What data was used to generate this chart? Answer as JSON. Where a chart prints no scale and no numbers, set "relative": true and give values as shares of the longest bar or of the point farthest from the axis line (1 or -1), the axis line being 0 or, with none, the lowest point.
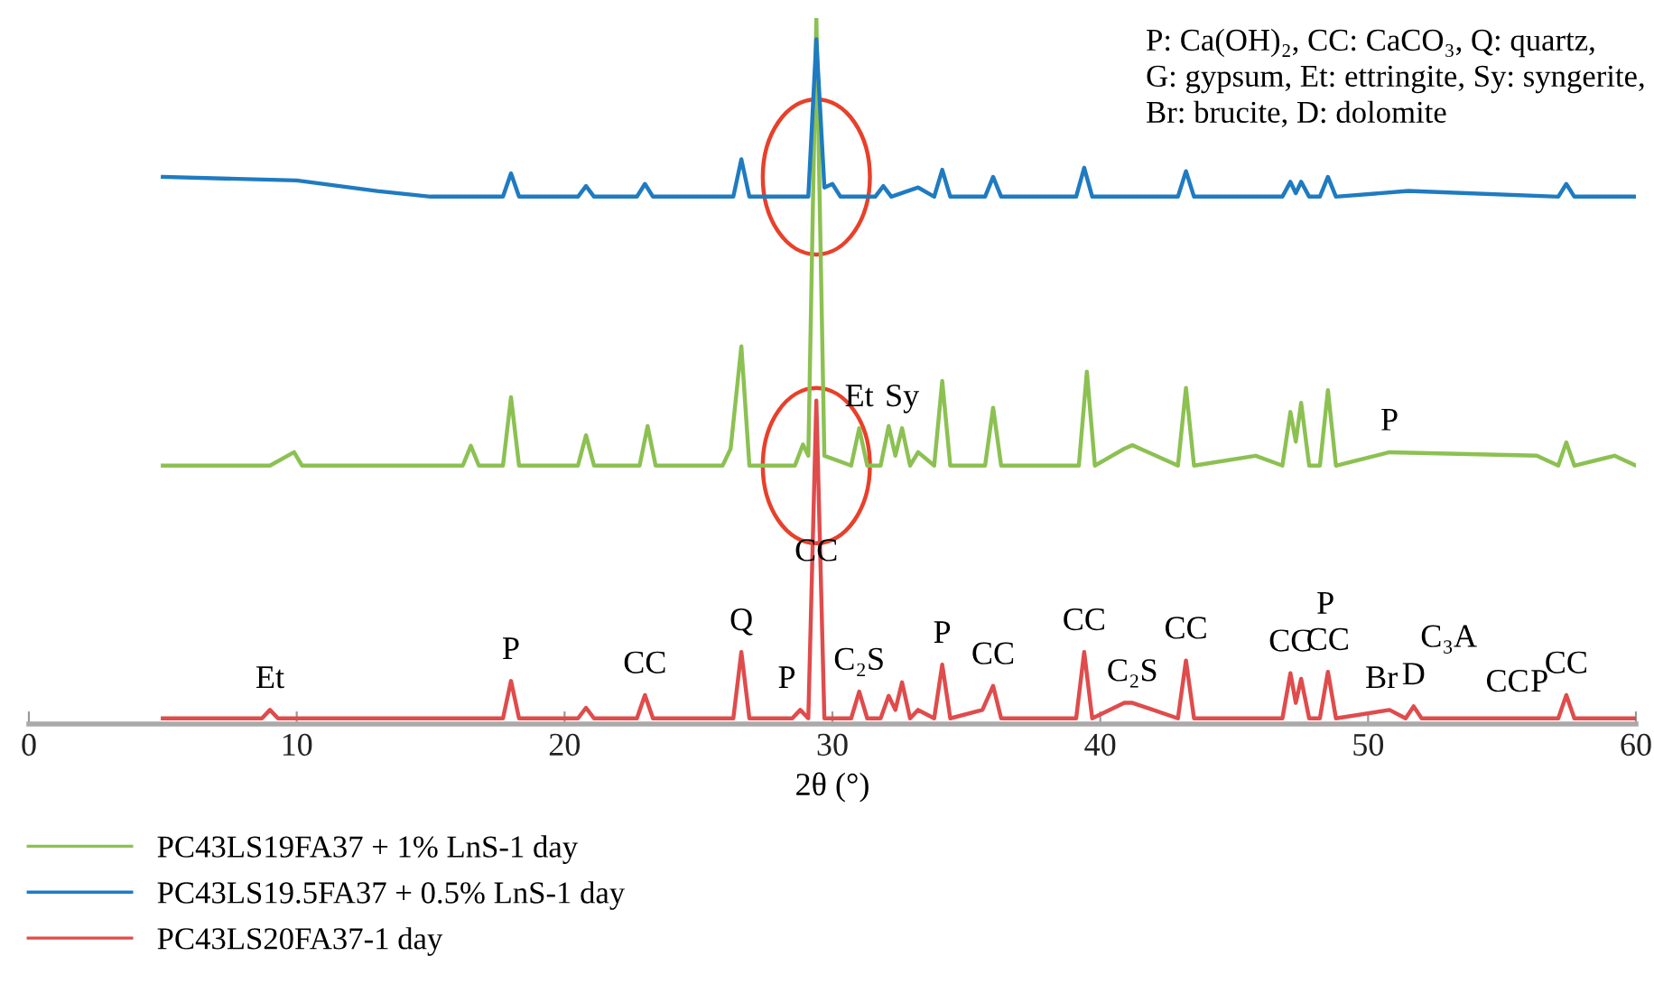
{
  "chart_data": {
    "type": "line",
    "relative": true,
    "xlabel": "2θ (°)",
    "xlim": [
      0,
      60
    ],
    "xticks": [
      0,
      10,
      20,
      30,
      40,
      50,
      60
    ],
    "tick_labels": "x",
    "legend": "bottom left",
    "grid": false,
    "marker": "none",
    "line_style": "solid",
    "series": [
      {
        "name": "PC43LS19FA37 + 1% LnS-1 day",
        "color": "#8cc152",
        "x": [
          5,
          9,
          9.9,
          10.2,
          16.2,
          16.5,
          16.8,
          17.7,
          18.0,
          18.3,
          20.5,
          20.8,
          21.1,
          22.8,
          23.1,
          23.4,
          25.9,
          26.2,
          26.6,
          26.9,
          28.6,
          28.9,
          29.1,
          29.4,
          29.7,
          30.7,
          31.0,
          31.3,
          31.8,
          32.1,
          32.35,
          32.6,
          32.9,
          33.2,
          33.8,
          34.1,
          34.4,
          35.7,
          36.0,
          36.3,
          39.2,
          39.5,
          39.8,
          40.9,
          41.2,
          42.9,
          43.2,
          43.5,
          45.8,
          46.8,
          47.1,
          47.3,
          47.5,
          47.8,
          48.2,
          48.5,
          48.8,
          50.8,
          56.3,
          57.1,
          57.4,
          57.7,
          59.2,
          60
        ],
        "values": [
          0.366,
          0.366,
          0.385,
          0.366,
          0.366,
          0.394,
          0.366,
          0.366,
          0.463,
          0.366,
          0.366,
          0.409,
          0.366,
          0.366,
          0.422,
          0.366,
          0.366,
          0.39,
          0.535,
          0.366,
          0.366,
          0.396,
          0.38,
          1.0,
          0.38,
          0.366,
          0.419,
          0.366,
          0.366,
          0.422,
          0.38,
          0.419,
          0.366,
          0.385,
          0.366,
          0.486,
          0.366,
          0.366,
          0.448,
          0.366,
          0.366,
          0.499,
          0.366,
          0.39,
          0.395,
          0.366,
          0.476,
          0.366,
          0.38,
          0.366,
          0.442,
          0.4,
          0.455,
          0.366,
          0.366,
          0.473,
          0.366,
          0.385,
          0.38,
          0.366,
          0.399,
          0.366,
          0.38,
          0.366
        ]
      },
      {
        "name": "PC43LS19.5FA37 + 0.5% LnS-1 day",
        "color": "#1f7bc1",
        "x": [
          5,
          10,
          13,
          15,
          17.7,
          18.0,
          18.3,
          20.5,
          20.8,
          21.1,
          22.7,
          23.0,
          23.3,
          26.3,
          26.6,
          26.9,
          29.1,
          29.4,
          29.7,
          30.0,
          30.3,
          31.6,
          31.9,
          32.2,
          33.2,
          33.8,
          34.1,
          34.4,
          35.7,
          36.0,
          36.3,
          39.1,
          39.4,
          39.7,
          42.9,
          43.2,
          43.5,
          46.8,
          47.1,
          47.3,
          47.5,
          47.8,
          48.2,
          48.5,
          48.8,
          51.5,
          57.1,
          57.4,
          57.7,
          60
        ],
        "values": [
          0.775,
          0.77,
          0.755,
          0.747,
          0.747,
          0.78,
          0.747,
          0.747,
          0.762,
          0.747,
          0.747,
          0.765,
          0.747,
          0.747,
          0.8,
          0.747,
          0.747,
          0.97,
          0.76,
          0.765,
          0.747,
          0.747,
          0.762,
          0.747,
          0.76,
          0.747,
          0.785,
          0.747,
          0.747,
          0.775,
          0.747,
          0.747,
          0.788,
          0.747,
          0.747,
          0.783,
          0.747,
          0.747,
          0.768,
          0.752,
          0.768,
          0.747,
          0.747,
          0.775,
          0.747,
          0.755,
          0.747,
          0.765,
          0.747,
          0.747
        ]
      },
      {
        "name": "PC43LS20FA37-1 day",
        "color": "#e04b4b",
        "x": [
          5,
          8.7,
          9.0,
          9.3,
          17.7,
          18.0,
          18.3,
          20.5,
          20.8,
          21.1,
          22.7,
          23.0,
          23.3,
          26.3,
          26.6,
          26.9,
          28.5,
          28.8,
          29.1,
          29.4,
          29.7,
          30.7,
          31.0,
          31.3,
          31.8,
          32.1,
          32.35,
          32.6,
          32.9,
          33.2,
          33.8,
          34.1,
          34.4,
          35.6,
          36.0,
          36.3,
          39.1,
          39.4,
          39.7,
          40.9,
          41.2,
          42.9,
          43.2,
          43.5,
          46.8,
          47.1,
          47.3,
          47.5,
          47.8,
          48.2,
          48.5,
          48.8,
          50.8,
          51.4,
          51.7,
          52.0,
          57.1,
          57.4,
          57.7,
          60
        ],
        "values": [
          0.008,
          0.008,
          0.02,
          0.008,
          0.008,
          0.061,
          0.008,
          0.008,
          0.023,
          0.008,
          0.008,
          0.041,
          0.008,
          0.008,
          0.102,
          0.008,
          0.008,
          0.02,
          0.008,
          0.458,
          0.008,
          0.008,
          0.046,
          0.008,
          0.008,
          0.04,
          0.02,
          0.059,
          0.008,
          0.02,
          0.008,
          0.084,
          0.008,
          0.02,
          0.054,
          0.008,
          0.008,
          0.102,
          0.008,
          0.03,
          0.03,
          0.008,
          0.09,
          0.008,
          0.008,
          0.072,
          0.03,
          0.064,
          0.008,
          0.008,
          0.074,
          0.008,
          0.02,
          0.008,
          0.025,
          0.008,
          0.008,
          0.041,
          0.008,
          0.008
        ]
      }
    ],
    "annotations": [
      "P: Ca(OH)₂, CC: CaCO₃, Q: quartz,\nG: gypsum, Et: ettringite, Sy: syngerite,\nBr: brucite, D: dolomite",
      {
        "text": "Et",
        "x": 9.0,
        "y": 0.02
      },
      {
        "text": "P",
        "x": 18.0,
        "y": 0.061
      },
      {
        "text": "CC",
        "x": 23.0,
        "y": 0.041
      },
      {
        "text": "Q",
        "x": 26.6,
        "y": 0.102
      },
      {
        "text": "P",
        "x": 28.3,
        "y": 0.02
      },
      {
        "text": "CC",
        "x": 29.4,
        "y": 0.2
      },
      {
        "text": "C₂S",
        "x": 31.0,
        "y": 0.046
      },
      {
        "text": "P",
        "x": 34.1,
        "y": 0.084
      },
      {
        "text": "CC",
        "x": 36.0,
        "y": 0.054
      },
      {
        "text": "CC",
        "x": 39.4,
        "y": 0.102
      },
      {
        "text": "C₂S",
        "x": 41.2,
        "y": 0.03
      },
      {
        "text": "CC",
        "x": 43.2,
        "y": 0.09
      },
      {
        "text": "CC",
        "x": 47.1,
        "y": 0.072
      },
      {
        "text": "P",
        "x": 47.1,
        "y": 0.072
      },
      {
        "text": "CC",
        "x": 48.5,
        "y": 0.074
      },
      {
        "text": "Br",
        "x": 50.5,
        "y": 0.02
      },
      {
        "text": "D",
        "x": 51.7,
        "y": 0.025
      },
      {
        "text": "C₃A",
        "x": 51.7,
        "y": 0.025
      },
      {
        "text": "CC",
        "x": 55.2,
        "y": 0.015
      },
      {
        "text": "P",
        "x": 56.4,
        "y": 0.015
      },
      {
        "text": "CC",
        "x": 57.4,
        "y": 0.041
      },
      {
        "text": "Et",
        "x": 31.0,
        "y": 0.419
      },
      {
        "text": "Sy",
        "x": 32.6,
        "y": 0.419
      },
      {
        "text": "P",
        "x": 50.8,
        "y": 0.385
      }
    ]
  }
}
